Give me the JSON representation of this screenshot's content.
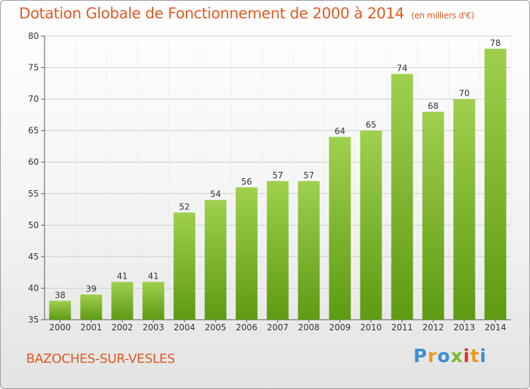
{
  "header": {
    "title": "Dotation Globale de Fonctionnement de 2000 à 2014",
    "subtitle": "(en milliers d'€)"
  },
  "footer": {
    "city": "BAZOCHES-SUR-VESLES",
    "logo": "Proxiti"
  },
  "colors": {
    "title": "#e05a22",
    "bar_top": "#9fd04e",
    "bar_bottom": "#5e9a12"
  },
  "chart_data": {
    "type": "bar",
    "title": "Dotation Globale de Fonctionnement de 2000 à 2014",
    "subtitle": "(en milliers d'€)",
    "xlabel": "",
    "ylabel": "",
    "categories": [
      "2000",
      "2001",
      "2002",
      "2003",
      "2004",
      "2005",
      "2006",
      "2007",
      "2008",
      "2009",
      "2010",
      "2011",
      "2012",
      "2013",
      "2014"
    ],
    "values": [
      38,
      39,
      41,
      41,
      52,
      54,
      56,
      57,
      57,
      64,
      65,
      74,
      68,
      70,
      78
    ],
    "ylim": [
      35,
      80
    ],
    "yticks": [
      35,
      40,
      45,
      50,
      55,
      60,
      65,
      70,
      75,
      80
    ],
    "grid": true,
    "legend": "none"
  }
}
